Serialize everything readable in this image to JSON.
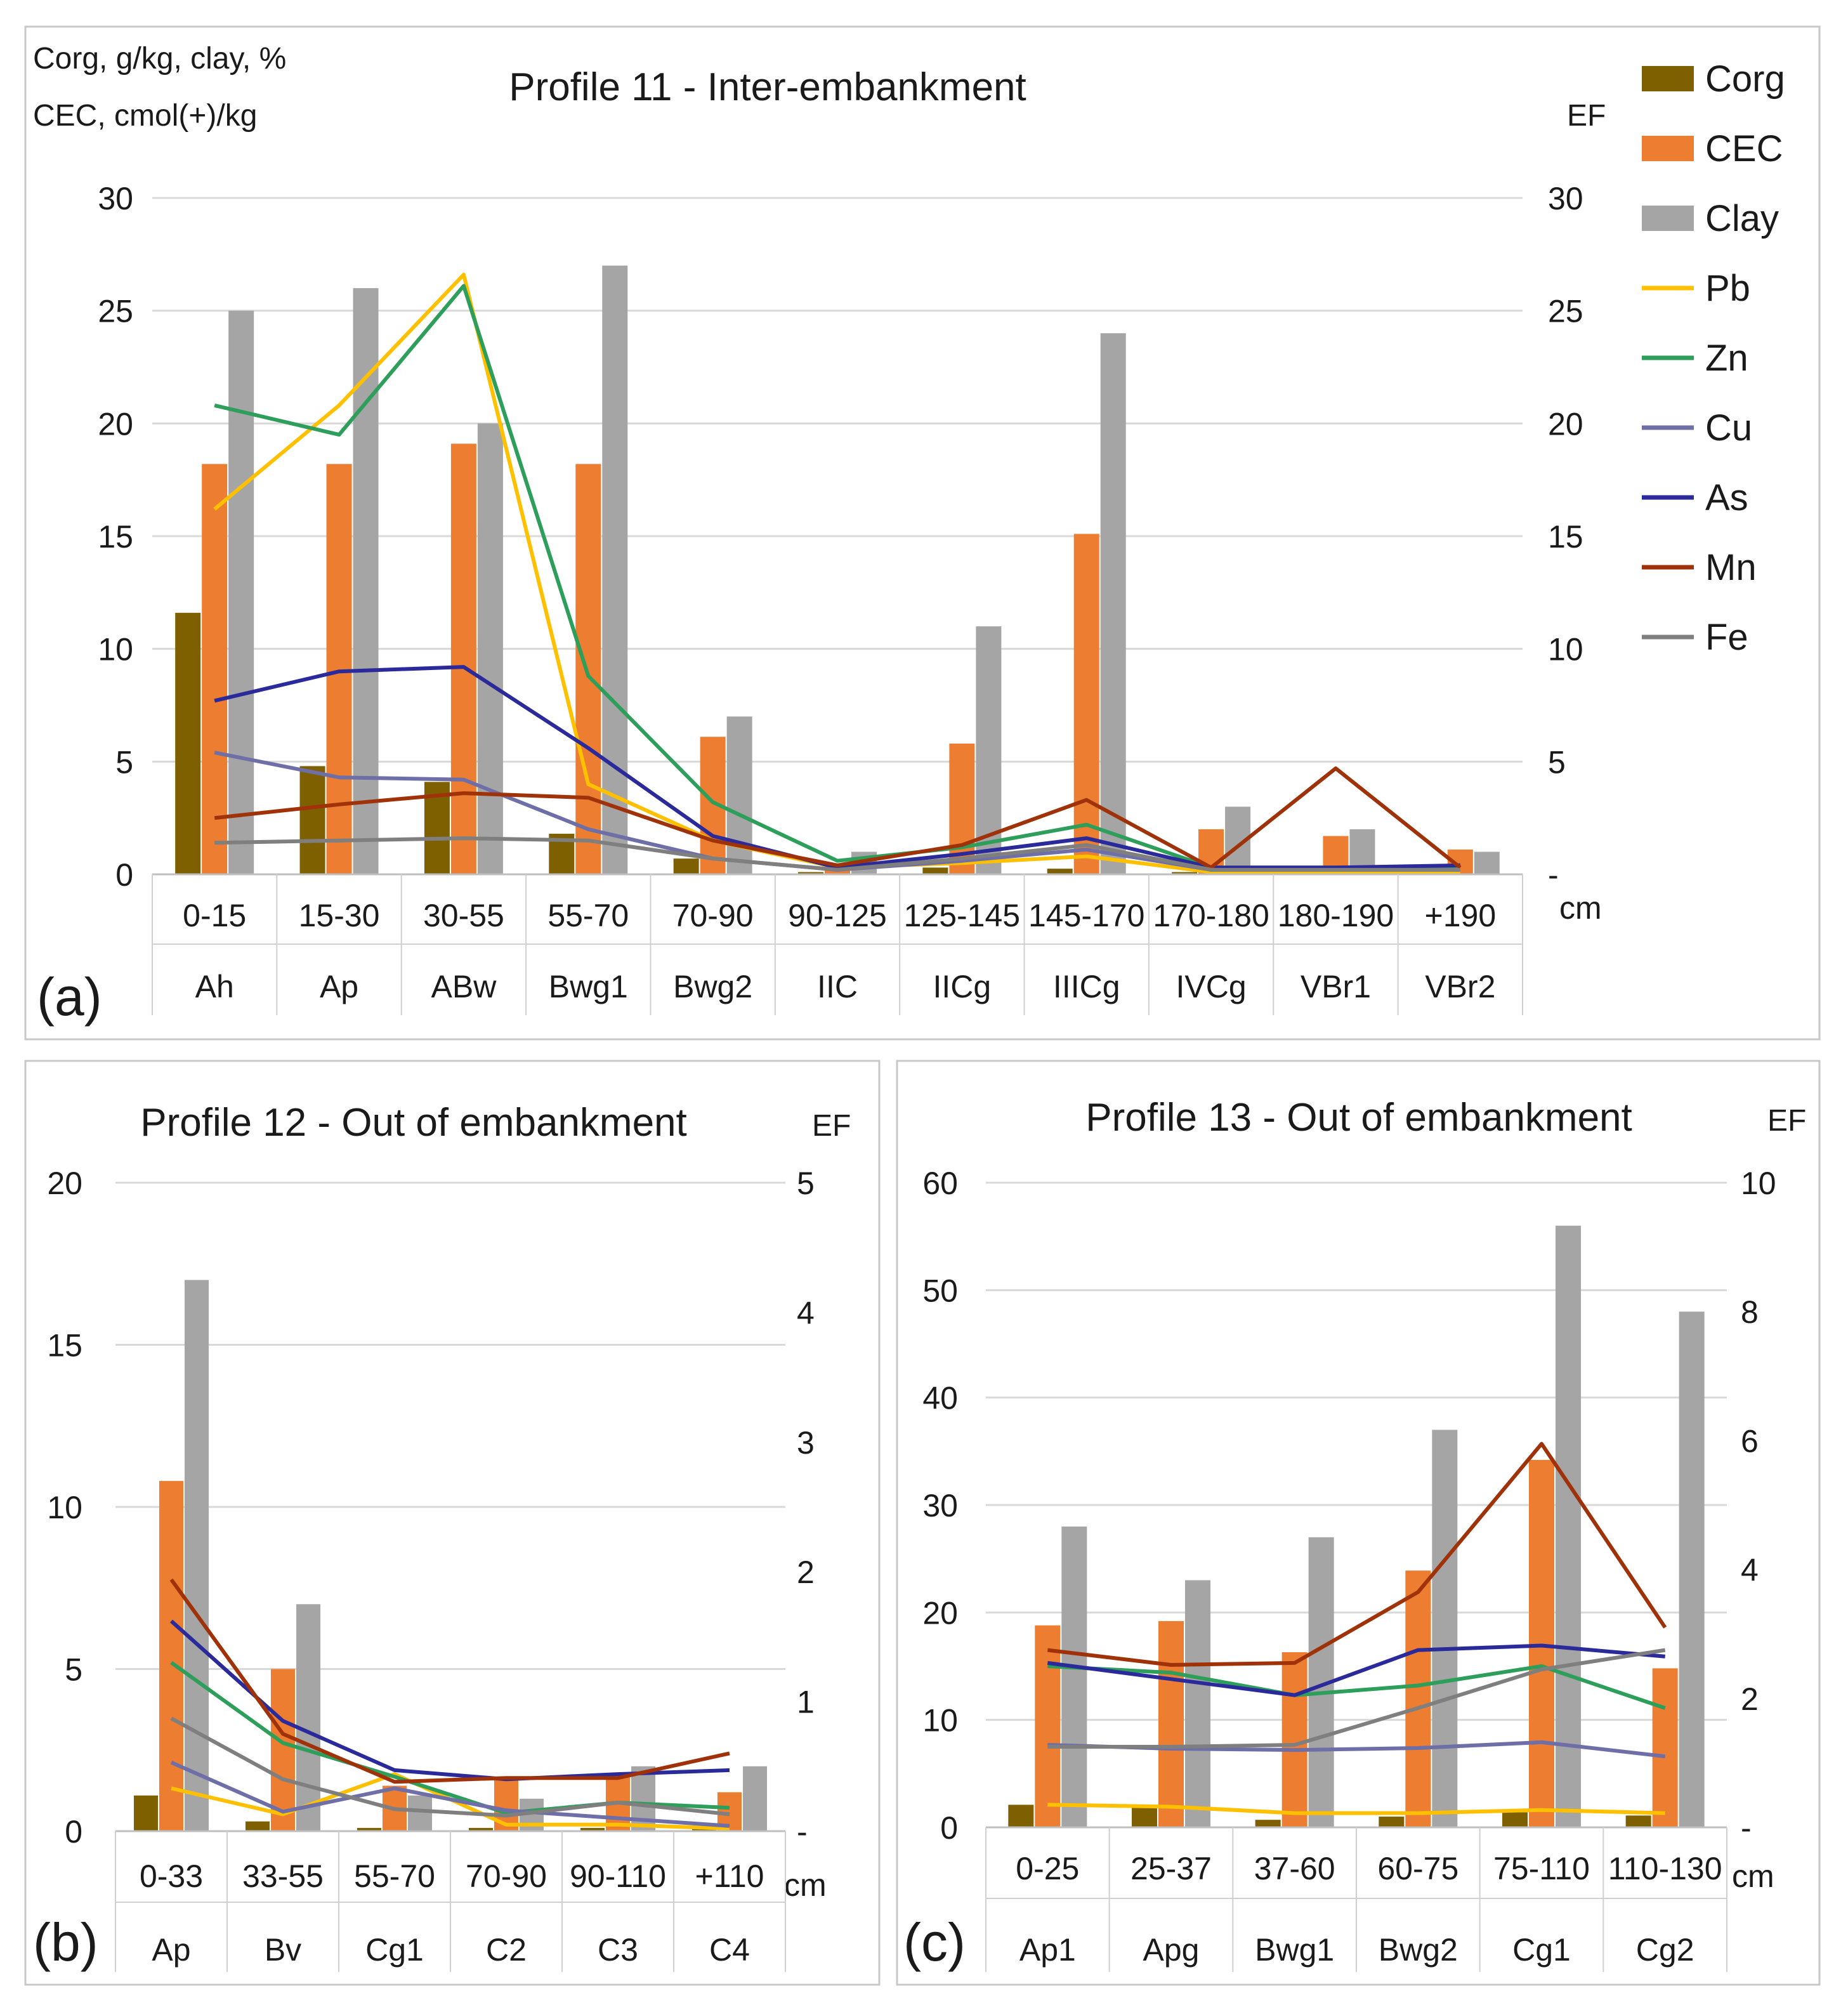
{
  "colors": {
    "Corg": "#7f6000",
    "CEC": "#ed7d31",
    "Clay": "#a5a5a5",
    "Pb": "#ffc000",
    "Zn": "#2e9e5b",
    "Cu": "#6f6fa8",
    "As": "#2a2a9a",
    "Mn": "#a0320a",
    "Fe": "#7f7f7f"
  },
  "legend": [
    "Corg",
    "CEC",
    "Clay",
    "Pb",
    "Zn",
    "Cu",
    "As",
    "Mn",
    "Fe"
  ],
  "chart_data": [
    {
      "id": "a",
      "type": "bar+line",
      "panel_label": "(a)",
      "title": "Profile 11 -  Inter-embankment",
      "ylabel_lines": [
        "Corg, g/kg,  clay, %",
        "CEC, cmol(+)/kg"
      ],
      "y2label": "EF",
      "unit_label": "cm",
      "ylim": [
        0,
        30
      ],
      "yticks": [
        "0",
        "5",
        "10",
        "15",
        "20",
        "25",
        "30"
      ],
      "y2lim": [
        0,
        30
      ],
      "y2ticks": [
        "-",
        "5",
        "10",
        "15",
        "20",
        "25",
        "30"
      ],
      "categories": [
        "0-15",
        "15-30",
        "30-55",
        "55-70",
        "70-90",
        "90-125",
        "125-145",
        "145-170",
        "170-180",
        "180-190",
        "+190"
      ],
      "horizons": [
        "Ah",
        "Ap",
        "ABw",
        "Bwg1",
        "Bwg2",
        "IIC",
        "IICg",
        "IIICg",
        "IVCg",
        "VBr1",
        "VBr2"
      ],
      "bars": [
        {
          "name": "Corg",
          "values": [
            11.6,
            4.8,
            4.1,
            1.8,
            0.7,
            0.1,
            0.3,
            0.25,
            0.1,
            0.0,
            0.05
          ]
        },
        {
          "name": "CEC",
          "values": [
            18.2,
            18.2,
            19.1,
            18.2,
            6.1,
            0.4,
            5.8,
            15.1,
            2.0,
            1.7,
            1.1
          ]
        },
        {
          "name": "Clay",
          "values": [
            25,
            26,
            20,
            27,
            7,
            1,
            11,
            24,
            3,
            2,
            1
          ]
        }
      ],
      "lines": [
        {
          "name": "Pb",
          "values": [
            16.2,
            20.8,
            26.6,
            4.0,
            1.5,
            0.3,
            0.5,
            0.8,
            0.1,
            0.1,
            0.1
          ]
        },
        {
          "name": "Zn",
          "values": [
            20.8,
            19.5,
            26.1,
            8.8,
            3.2,
            0.6,
            1.2,
            2.2,
            0.3,
            0.3,
            0.3
          ]
        },
        {
          "name": "Cu",
          "values": [
            5.4,
            4.3,
            4.2,
            2.0,
            0.7,
            0.2,
            0.6,
            1.1,
            0.2,
            0.2,
            0.2
          ]
        },
        {
          "name": "As",
          "values": [
            7.7,
            9.0,
            9.2,
            5.6,
            1.7,
            0.3,
            0.9,
            1.6,
            0.3,
            0.3,
            0.4
          ]
        },
        {
          "name": "Mn",
          "values": [
            2.5,
            3.1,
            3.6,
            3.4,
            1.5,
            0.4,
            1.3,
            3.3,
            0.3,
            4.7,
            0.3
          ]
        },
        {
          "name": "Fe",
          "values": [
            1.4,
            1.5,
            1.6,
            1.5,
            0.7,
            0.2,
            0.7,
            1.3,
            0.2,
            0.2,
            0.2
          ]
        }
      ]
    },
    {
      "id": "b",
      "type": "bar+line",
      "panel_label": "(b)",
      "title": "Profile 12 - Out of embankment",
      "y2label": "EF",
      "unit_label": "cm",
      "ylim": [
        0,
        20
      ],
      "yticks": [
        "0",
        "5",
        "10",
        "15",
        "20"
      ],
      "y2lim": [
        0,
        5
      ],
      "y2ticks": [
        "-",
        "1",
        "2",
        "3",
        "4",
        "5"
      ],
      "categories": [
        "0-33",
        "33-55",
        "55-70",
        "70-90",
        "90-110",
        "+110"
      ],
      "horizons": [
        "Ap",
        "Bv",
        "Cg1",
        "C2",
        "C3",
        "C4"
      ],
      "bars": [
        {
          "name": "Corg",
          "values": [
            1.1,
            0.3,
            0.1,
            0.1,
            0.1,
            0.1
          ]
        },
        {
          "name": "CEC",
          "values": [
            10.8,
            5.0,
            1.4,
            1.6,
            1.7,
            1.2
          ]
        },
        {
          "name": "Clay",
          "values": [
            17,
            7,
            1.1,
            1,
            2,
            2
          ]
        }
      ],
      "lines": [
        {
          "name": "Pb",
          "values": [
            0.33,
            0.13,
            0.44,
            0.05,
            0.05,
            0.02
          ]
        },
        {
          "name": "Zn",
          "values": [
            1.3,
            0.68,
            0.42,
            0.14,
            0.22,
            0.18
          ]
        },
        {
          "name": "Cu",
          "values": [
            0.53,
            0.15,
            0.33,
            0.16,
            0.1,
            0.04
          ]
        },
        {
          "name": "As",
          "values": [
            1.62,
            0.85,
            0.47,
            0.4,
            0.44,
            0.47
          ]
        },
        {
          "name": "Mn",
          "values": [
            1.94,
            0.75,
            0.38,
            0.41,
            0.41,
            0.6
          ]
        },
        {
          "name": "Fe",
          "values": [
            0.87,
            0.4,
            0.17,
            0.12,
            0.22,
            0.13
          ]
        }
      ]
    },
    {
      "id": "c",
      "type": "bar+line",
      "panel_label": "(c)",
      "title": "Profile 13 - Out of embankment",
      "y2label": "EF",
      "unit_label": "cm",
      "ylim": [
        0,
        60
      ],
      "yticks": [
        "0",
        "10",
        "20",
        "30",
        "40",
        "50",
        "60"
      ],
      "y2lim": [
        0,
        10
      ],
      "y2ticks": [
        "-",
        "2",
        "4",
        "6",
        "8",
        "10"
      ],
      "categories": [
        "0-25",
        "25-37",
        "37-60",
        "60-75",
        "75-110",
        "110-130"
      ],
      "horizons": [
        "Ap1",
        "Apg",
        "Bwg1",
        "Bwg2",
        "Cg1",
        "Cg2"
      ],
      "bars": [
        {
          "name": "Corg",
          "values": [
            2.1,
            1.8,
            0.7,
            1.0,
            1.4,
            1.1
          ]
        },
        {
          "name": "CEC",
          "values": [
            18.8,
            19.2,
            16.3,
            23.9,
            34.2,
            14.8
          ]
        },
        {
          "name": "Clay",
          "values": [
            28,
            23,
            27,
            37,
            56,
            48
          ]
        }
      ],
      "lines": [
        {
          "name": "Pb",
          "values": [
            0.35,
            0.32,
            0.22,
            0.22,
            0.27,
            0.22
          ]
        },
        {
          "name": "Zn",
          "values": [
            2.5,
            2.4,
            2.05,
            2.2,
            2.5,
            1.85
          ]
        },
        {
          "name": "Cu",
          "values": [
            1.28,
            1.22,
            1.2,
            1.23,
            1.32,
            1.1
          ]
        },
        {
          "name": "As",
          "values": [
            2.55,
            2.3,
            2.05,
            2.75,
            2.82,
            2.65
          ]
        },
        {
          "name": "Mn",
          "values": [
            2.75,
            2.52,
            2.55,
            3.65,
            5.95,
            3.1
          ]
        },
        {
          "name": "Fe",
          "values": [
            1.25,
            1.25,
            1.28,
            1.85,
            2.45,
            2.75
          ]
        }
      ]
    }
  ]
}
